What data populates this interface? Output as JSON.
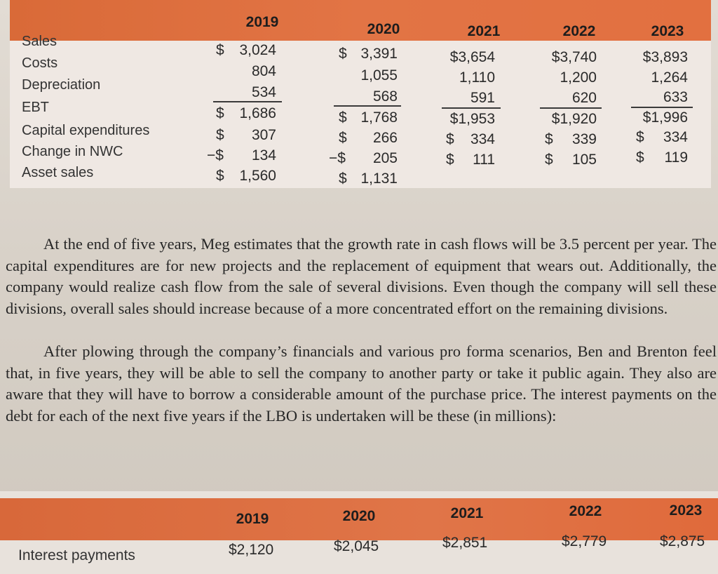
{
  "table1": {
    "years": [
      "2019",
      "2020",
      "2021",
      "2022",
      "2023"
    ],
    "rows": [
      {
        "label": "Sales",
        "cells": [
          {
            "sign": "$",
            "value": "3,024"
          },
          {
            "sign": "$",
            "value": "3,391"
          },
          {
            "sign": "",
            "value": "$3,654"
          },
          {
            "sign": "",
            "value": "$3,740"
          },
          {
            "sign": "",
            "value": "$3,893"
          }
        ]
      },
      {
        "label": "Costs",
        "cells": [
          {
            "sign": "",
            "value": "804"
          },
          {
            "sign": "",
            "value": "1,055"
          },
          {
            "sign": "",
            "value": "1,110"
          },
          {
            "sign": "",
            "value": "1,200"
          },
          {
            "sign": "",
            "value": "1,264"
          }
        ]
      },
      {
        "label": "Depreciation",
        "cells": [
          {
            "sign": "",
            "value": "534"
          },
          {
            "sign": "",
            "value": "568"
          },
          {
            "sign": "",
            "value": "591"
          },
          {
            "sign": "",
            "value": "620"
          },
          {
            "sign": "",
            "value": "633"
          }
        ]
      },
      {
        "label": "EBT",
        "cells": [
          {
            "sign": "$",
            "value": "1,686"
          },
          {
            "sign": "$",
            "value": "1,768"
          },
          {
            "sign": "",
            "value": "$1,953"
          },
          {
            "sign": "",
            "value": "$1,920"
          },
          {
            "sign": "",
            "value": "$1,996"
          }
        ]
      },
      {
        "label": "Capital expenditures",
        "cells": [
          {
            "sign": "$",
            "value": "307"
          },
          {
            "sign": "$",
            "value": "266"
          },
          {
            "sign": "$",
            "value": "334"
          },
          {
            "sign": "$",
            "value": "339"
          },
          {
            "sign": "$",
            "value": "334"
          }
        ]
      },
      {
        "label": "Change in NWC",
        "cells": [
          {
            "sign": "−$",
            "value": "134"
          },
          {
            "sign": "−$",
            "value": "205"
          },
          {
            "sign": "$",
            "value": "111"
          },
          {
            "sign": "$",
            "value": "105"
          },
          {
            "sign": "$",
            "value": "119"
          }
        ]
      },
      {
        "label": "Asset sales",
        "cells": [
          {
            "sign": "$",
            "value": "1,560"
          },
          {
            "sign": "$",
            "value": "1,131"
          }
        ]
      }
    ]
  },
  "paragraphs": {
    "p1": "At the end of five years, Meg estimates that the growth rate in cash flows will be 3.5 percent per year. The capital expenditures are for new projects and the replacement of equipment that wears out. Additionally, the company would realize cash flow from the sale of several divisions. Even though the company will sell these divisions, overall sales should increase because of a more concentrated effort on the remaining divisions.",
    "p2": "After plowing through the company’s financials and various pro forma scenarios, Ben and Brenton feel that, in five years, they will be able to sell the company to another party or take it public again. They also are aware that they will have to borrow a considerable amount of the purchase price. The interest payments on the debt for each of the next five years if the LBO is undertaken will be these (in millions):"
  },
  "table2": {
    "label": "Interest payments",
    "years": [
      "2019",
      "2020",
      "2021",
      "2022",
      "2023"
    ],
    "values": [
      "$2,120",
      "$2,045",
      "$2,851",
      "$2,779",
      "$2,875"
    ]
  },
  "colors": {
    "header_orange": "#e27445",
    "table_bg": "#efe8e3",
    "page_bg": "#d8d1c8"
  }
}
